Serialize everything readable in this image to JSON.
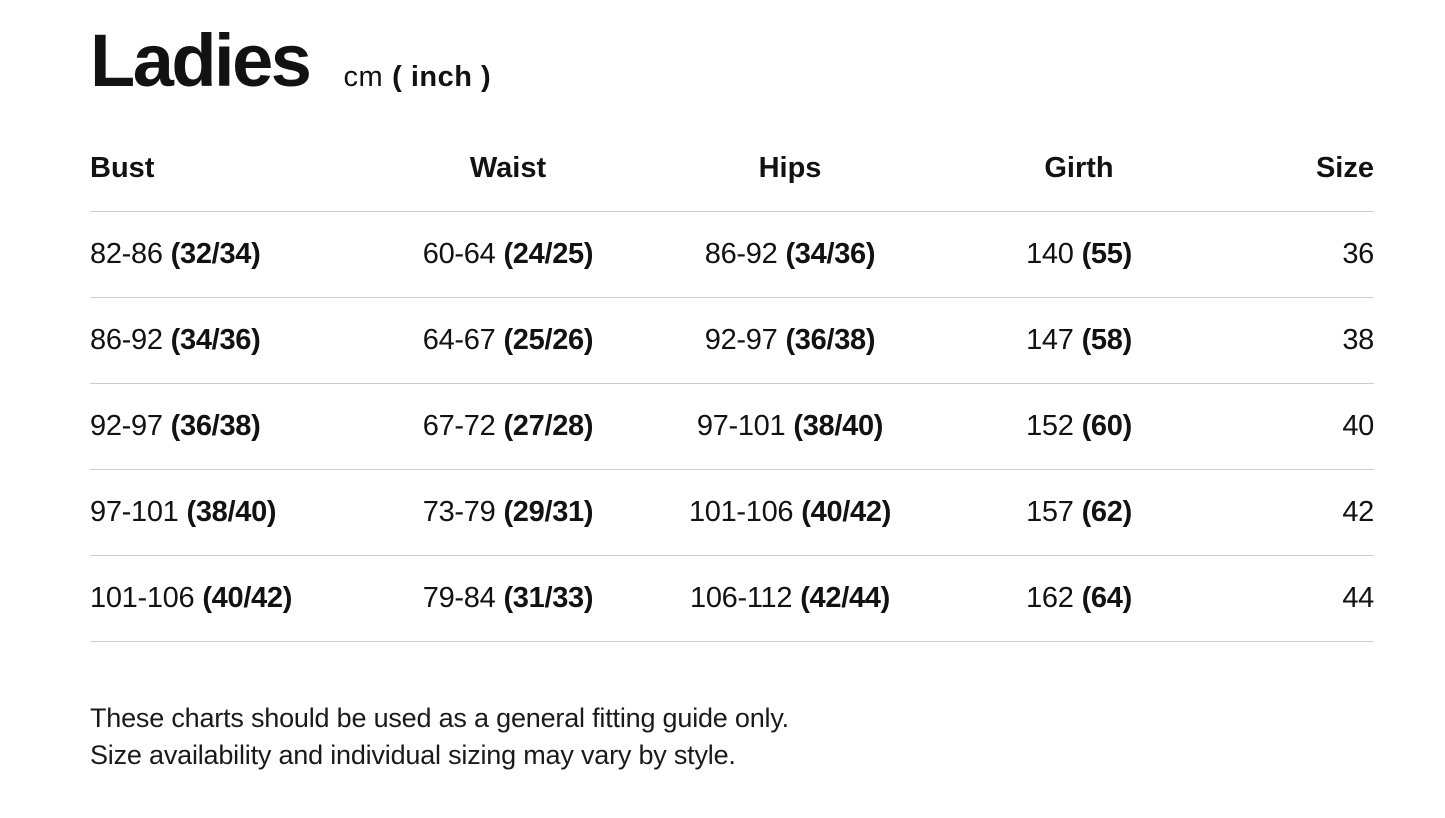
{
  "header": {
    "title": "Ladies",
    "unit_cm": "cm",
    "unit_inch": "( inch )"
  },
  "table": {
    "columns": [
      "Bust",
      "Waist",
      "Hips",
      "Girth",
      "Size"
    ],
    "rows": [
      {
        "bust_cm": "82-86",
        "bust_inch": "(32/34)",
        "waist_cm": "60-64",
        "waist_inch": "(24/25)",
        "hips_cm": "86-92",
        "hips_inch": "(34/36)",
        "girth_cm": "140",
        "girth_inch": "(55)",
        "size": "36"
      },
      {
        "bust_cm": "86-92",
        "bust_inch": "(34/36)",
        "waist_cm": "64-67",
        "waist_inch": "(25/26)",
        "hips_cm": "92-97",
        "hips_inch": "(36/38)",
        "girth_cm": "147",
        "girth_inch": "(58)",
        "size": "38"
      },
      {
        "bust_cm": "92-97",
        "bust_inch": "(36/38)",
        "waist_cm": "67-72",
        "waist_inch": "(27/28)",
        "hips_cm": "97-101",
        "hips_inch": "(38/40)",
        "girth_cm": "152",
        "girth_inch": "(60)",
        "size": "40"
      },
      {
        "bust_cm": "97-101",
        "bust_inch": "(38/40)",
        "waist_cm": "73-79",
        "waist_inch": "(29/31)",
        "hips_cm": "101-106",
        "hips_inch": "(40/42)",
        "girth_cm": "157",
        "girth_inch": "(62)",
        "size": "42"
      },
      {
        "bust_cm": "101-106",
        "bust_inch": "(40/42)",
        "waist_cm": "79-84",
        "waist_inch": "(31/33)",
        "hips_cm": "106-112",
        "hips_inch": "(42/44)",
        "girth_cm": "162",
        "girth_inch": "(64)",
        "size": "44"
      }
    ]
  },
  "notes": {
    "line1": "These charts should be used as a general fitting guide only.",
    "line2": "Size availability and individual sizing may vary by style."
  }
}
